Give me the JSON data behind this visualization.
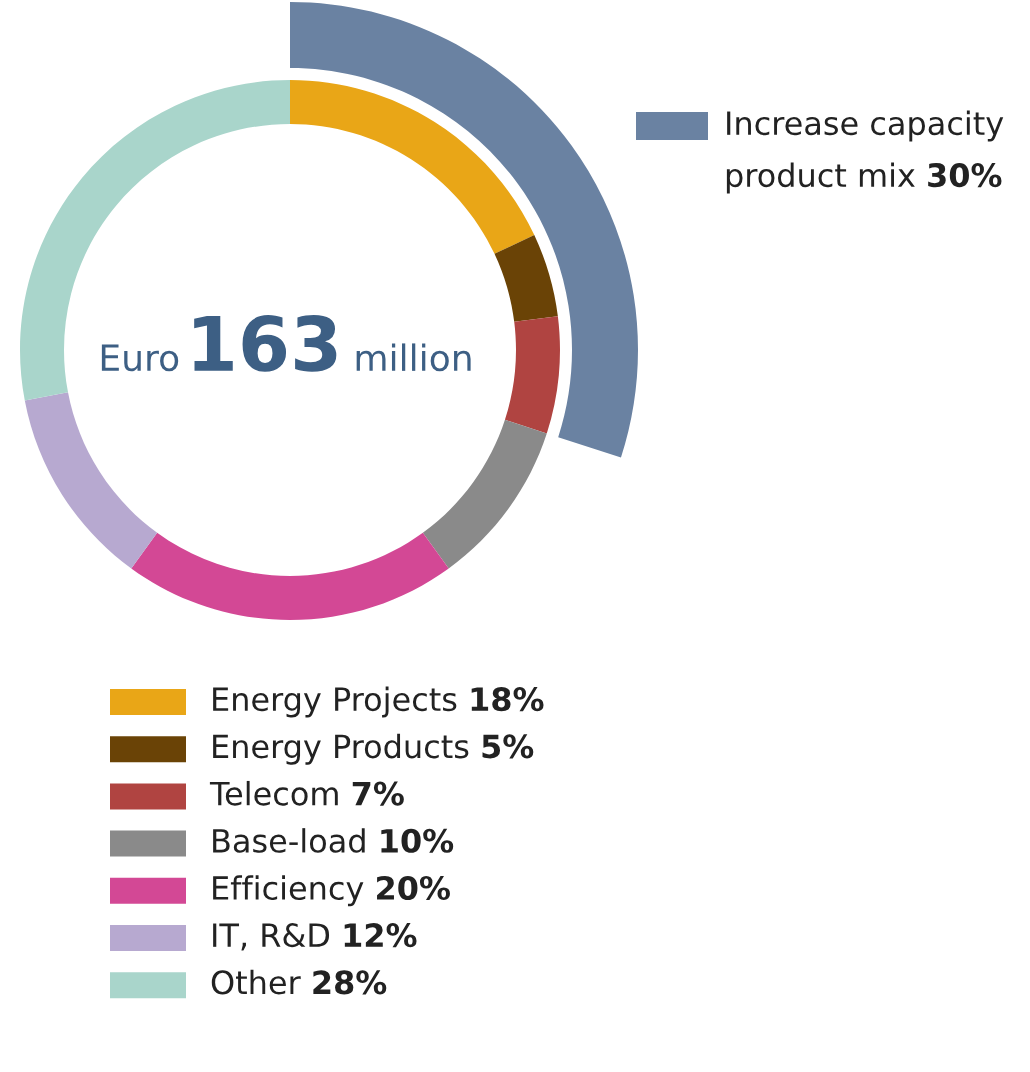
{
  "chart_data": {
    "type": "donut",
    "categories": [
      "Energy Projects",
      "Energy Products",
      "Telecom",
      "Base-load",
      "Efficiency",
      "IT, R&D",
      "Other"
    ],
    "legend": "bottom right",
    "annotations": [
      "Euro",
      "163",
      "million"
    ],
    "series": [
      {
        "values": [
          18,
          5,
          7,
          10,
          20,
          12,
          28
        ],
        "colors": [
          "#e9a617",
          "#6a4306",
          "#b04441",
          "#8a8a8a",
          "#d34895",
          "#b7a9d0",
          "#a9d5cb"
        ],
        "value_labels": [
          "18%",
          "5%",
          "7%",
          "10%",
          "20%",
          "12%",
          "28%"
        ]
      },
      {
        "name": "Increase capacity product mix",
        "color": "#6a82a2",
        "values": [
          30,
          null,
          null,
          null,
          null,
          null,
          null
        ],
        "value_labels": [
          "30%",
          null,
          null,
          null,
          null,
          null,
          null
        ]
      }
    ]
  }
}
